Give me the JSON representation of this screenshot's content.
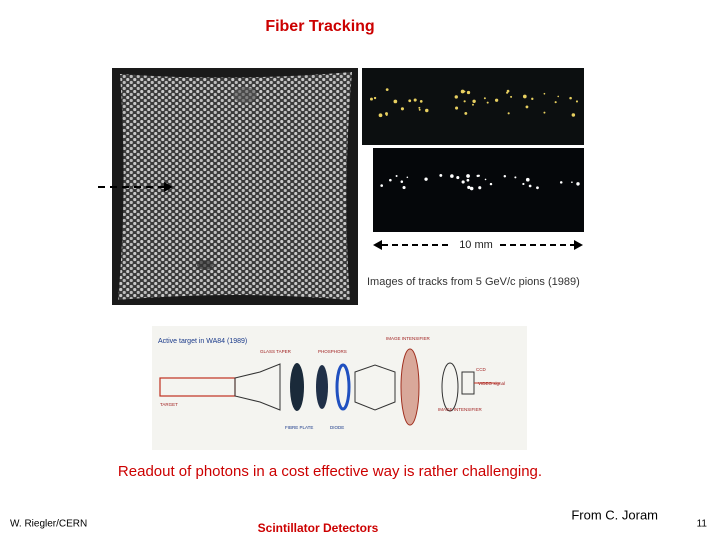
{
  "header": {
    "title": "Fiber Tracking"
  },
  "figure": {
    "tracks_caption": "Images of tracks from 5 GeV/c pions (1989)",
    "scale_label": "10 mm",
    "diagram": {
      "title": "Active target in WA84 (1989)",
      "labels": [
        "GLASS TAPER",
        "PHOSPHORS",
        "IMAGE INTENSIFIER",
        "CCD",
        "VIDEO signal",
        "TARGET",
        "FIBRE PLATE",
        "DIODE",
        "IMAGE INTENSIFIER"
      ]
    }
  },
  "body": {
    "caption": "Readout of photons in a cost effective way is rather challenging."
  },
  "footer": {
    "author": "W. Riegler/CERN",
    "course": "Scintillator Detectors",
    "credit": "From C. Joram",
    "page": "11"
  }
}
